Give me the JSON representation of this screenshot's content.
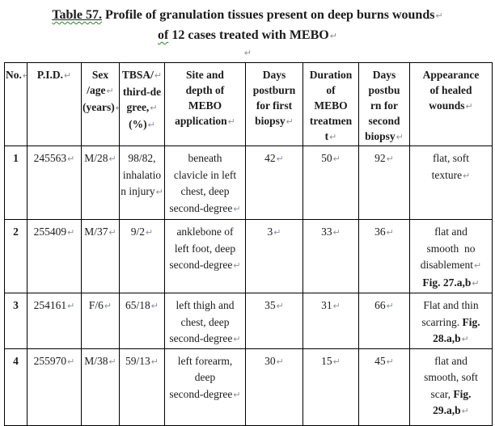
{
  "title": {
    "tag": "Table 57.",
    "line1_rest": " Profile of granulation tissues present on deep burns wounds",
    "line2_flag": "of",
    "line2_rest": " 12 cases treated with MEBO"
  },
  "marks": {
    "pilcrow": "↵"
  },
  "colors": {
    "text": "#1b1b1b",
    "border": "#000000",
    "wavy_underline": "#1e8a1e",
    "formatting_mark": "#8a919c"
  },
  "table": {
    "headers": [
      "No.¶",
      "P.I.D.¶",
      "Sex\n/age¶\n(years)¶",
      "TBSA/¶\nthird-de\ngree,¶\n(%)¶",
      "Site and\ndepth of\nMEBO\napplication¶",
      "Days\npostburn\nfor first\nbiopsy¶",
      "Duration\nof\nMEBO\ntreatmen\nt¶",
      "Days\npostbu\nrn for\nsecond\nbiopsy¶",
      "Appearance\nof healed\nwounds¶"
    ],
    "rows": [
      [
        "1",
        "245563¶",
        "M/28¶",
        "98/82,\ninhalatio\nn injury¶",
        "beneath\nclavicle in left\nchest, deep\nsecond-degree¶",
        "42¶",
        "50¶",
        "92¶",
        "flat, soft\ntexture¶"
      ],
      [
        "2",
        "255409¶",
        "M/37¶",
        "9/2¶",
        "anklebone of\nleft foot, deep\nsecond-degree¶",
        "3¶",
        "33¶",
        "36¶",
        "flat and\nsmooth  no\ndisablement¶\n**Fig. 27.a,b**¶"
      ],
      [
        "3",
        "254161¶",
        "F/6¶",
        "65/18¶",
        "left thigh and\nchest, deep\nsecond-degree¶",
        "35¶",
        "31¶",
        "66¶",
        "Flat and thin\nscarring. **Fig.\n28.a,b**¶"
      ],
      [
        "4",
        "255970¶",
        "M/38¶",
        "59/13¶",
        "left forearm,\ndeep\nsecond-degree¶",
        "30¶",
        "15¶",
        "45¶",
        "flat and\nsmooth, soft\nscar, **Fig.\n29.a,b**¶"
      ]
    ]
  }
}
